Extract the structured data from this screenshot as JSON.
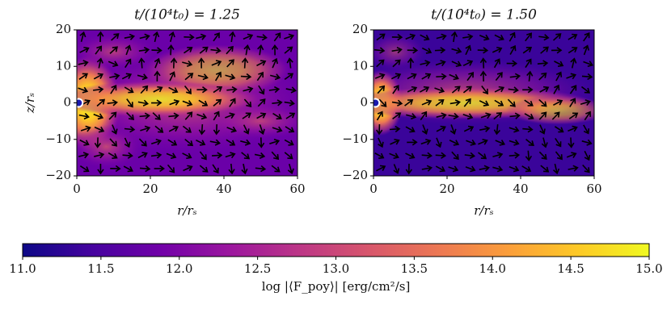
{
  "chart_data": [
    {
      "type": "heatmap",
      "title": "t/(10⁴t₀) = 1.25",
      "xlabel": "r/rₛ",
      "ylabel": "z/rₛ",
      "xlim": [
        0,
        60
      ],
      "ylim": [
        -20,
        20
      ],
      "xticks": [
        0,
        20,
        40,
        60
      ],
      "yticks": [
        {
          "value": -20,
          "label": "−20"
        },
        {
          "value": -10,
          "label": "−10"
        },
        0,
        10,
        20
      ]
    },
    {
      "type": "heatmap",
      "title": "t/(10⁴t₀) = 1.50",
      "xlabel": "r/rₛ",
      "xlim": [
        0,
        60
      ],
      "ylim": [
        -20,
        20
      ],
      "xticks": [
        0,
        20,
        40,
        60
      ],
      "yticks": [
        {
          "value": -20,
          "label": "−20"
        },
        {
          "value": -10,
          "label": "−10"
        },
        0,
        10,
        20
      ]
    }
  ],
  "colorbar": {
    "label": "log |⟨F_poy⟩| [erg/cm²/s]",
    "lim": [
      11,
      15
    ],
    "ticks": [
      {
        "value": 11,
        "label": "11.0"
      },
      11.5,
      {
        "value": 12,
        "label": "12.0"
      },
      12.5,
      {
        "value": 13,
        "label": "13.0"
      },
      13.5,
      {
        "value": 14,
        "label": "14.0"
      },
      14.5,
      {
        "value": 15,
        "label": "15.0"
      }
    ],
    "colors": [
      "#0d0887",
      "#46039f",
      "#7201a8",
      "#9c179e",
      "#bd3786",
      "#d8576b",
      "#ed7953",
      "#fb9f3a",
      "#fdca26",
      "#f0f921"
    ]
  }
}
